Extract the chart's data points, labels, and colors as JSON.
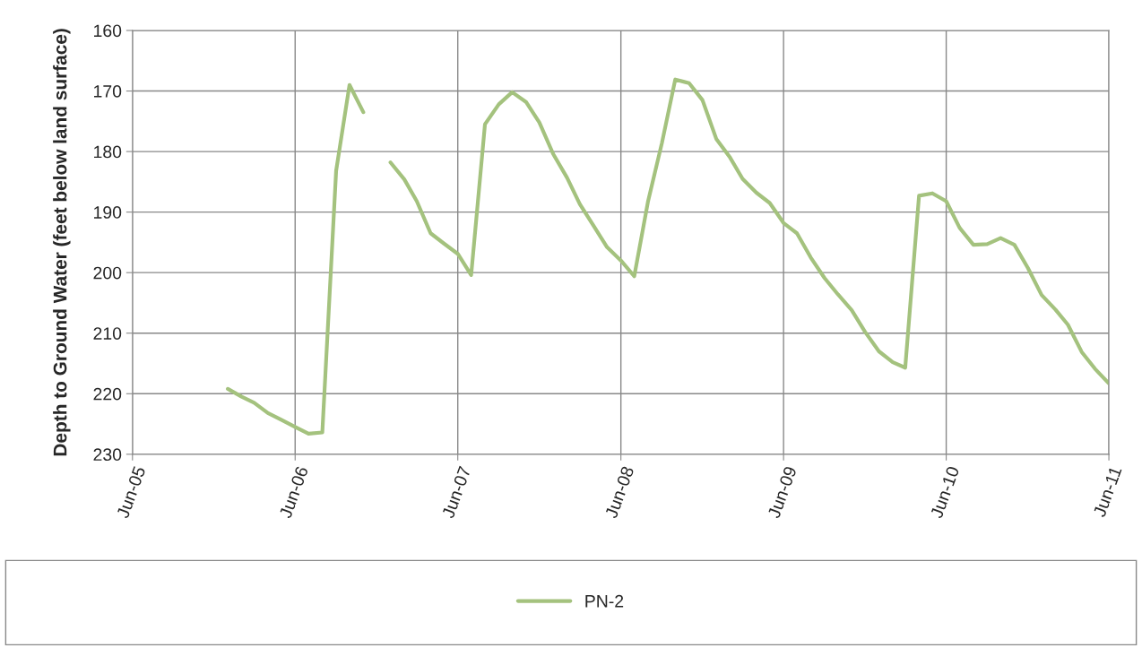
{
  "chart_data": {
    "type": "line",
    "ylabel": "Depth to Ground Water (feet below land surface)",
    "x": [
      "2006-01",
      "2006-02",
      "2006-03",
      "2006-04",
      "2006-05",
      "2006-06",
      "2006-07",
      "2006-08",
      "2006-09",
      "2006-10",
      "2006-11",
      "2006-12",
      "2007-01",
      "2007-02",
      "2007-03",
      "2007-04",
      "2007-05",
      "2007-06",
      "2007-07",
      "2007-08",
      "2007-09",
      "2007-10",
      "2007-11",
      "2007-12",
      "2008-01",
      "2008-02",
      "2008-03",
      "2008-04",
      "2008-05",
      "2008-06",
      "2008-07",
      "2008-08",
      "2008-09",
      "2008-10",
      "2008-11",
      "2008-12",
      "2009-01",
      "2009-02",
      "2009-03",
      "2009-04",
      "2009-05",
      "2009-06",
      "2009-07",
      "2009-08",
      "2009-09",
      "2009-10",
      "2009-11",
      "2009-12",
      "2010-01",
      "2010-02",
      "2010-03",
      "2010-04",
      "2010-05",
      "2010-06",
      "2010-07",
      "2010-08",
      "2010-09",
      "2010-10",
      "2010-11",
      "2010-12",
      "2011-01",
      "2011-02",
      "2011-03",
      "2011-04",
      "2011-05",
      "2011-06"
    ],
    "series": [
      {
        "name": "PN-2",
        "color": "#a4c27e",
        "values": [
          219.2,
          220.5,
          221.5,
          223.2,
          224.3,
          225.5,
          226.6,
          226.4,
          183.2,
          169.0,
          173.5,
          null,
          181.8,
          184.6,
          188.2,
          193.5,
          195.2,
          196.9,
          200.4,
          175.5,
          172.2,
          170.2,
          171.8,
          175.2,
          180.4,
          184.3,
          188.7,
          192.3,
          195.8,
          198.0,
          200.6,
          188.2,
          178.6,
          168.1,
          168.7,
          171.5,
          177.9,
          181.0,
          184.5,
          186.8,
          188.5,
          191.8,
          193.5,
          197.5,
          200.9,
          203.6,
          206.2,
          209.8,
          213.0,
          214.8,
          215.7,
          187.3,
          186.9,
          188.2,
          192.6,
          195.4,
          195.3,
          194.3,
          195.4,
          199.2,
          203.7,
          206.1,
          208.6,
          213.1,
          215.9,
          218.3
        ]
      }
    ],
    "ylim": [
      230,
      160
    ],
    "yticks": [
      160,
      170,
      180,
      190,
      200,
      210,
      220,
      230
    ],
    "xlim": [
      "2005-06",
      "2011-06"
    ],
    "xticks": [
      {
        "value": "2005-06",
        "label": "Jun-05"
      },
      {
        "value": "2006-06",
        "label": "Jun-06"
      },
      {
        "value": "2007-06",
        "label": "Jun-07"
      },
      {
        "value": "2008-06",
        "label": "Jun-08"
      },
      {
        "value": "2009-06",
        "label": "Jun-09"
      },
      {
        "value": "2010-06",
        "label": "Jun-10"
      },
      {
        "value": "2011-06",
        "label": "Jun-11"
      }
    ],
    "grid": true,
    "legend": "bottom",
    "line_style": "solid"
  }
}
